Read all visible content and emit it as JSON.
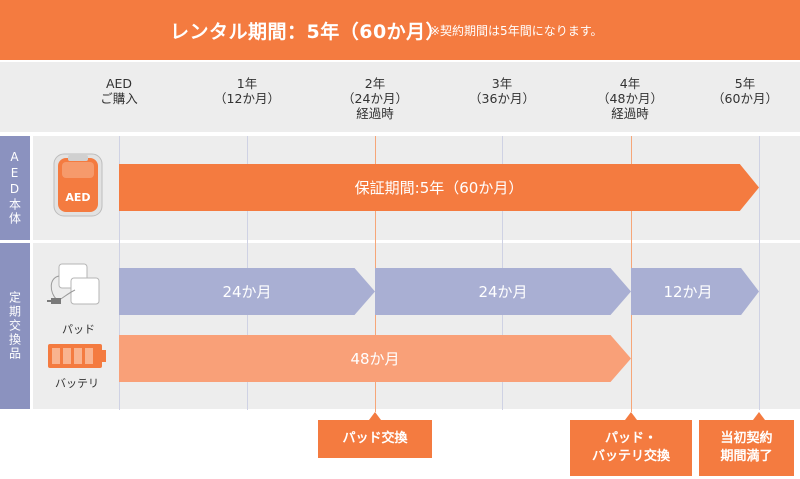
{
  "banner": {
    "title": "レンタル期間：5年（60か月）",
    "note": "※契約期間は5年間になります。"
  },
  "timeline_headers": [
    {
      "l1": "AED",
      "l2": "ご購入",
      "l3": ""
    },
    {
      "l1": "1年",
      "l2": "（12か月）",
      "l3": ""
    },
    {
      "l1": "2年",
      "l2": "（24か月）",
      "l3": "経過時"
    },
    {
      "l1": "3年",
      "l2": "（36か月）",
      "l3": ""
    },
    {
      "l1": "4年",
      "l2": "（48か月）",
      "l3": "経過時"
    },
    {
      "l1": "5年",
      "l2": "（60か月）",
      "l3": ""
    }
  ],
  "sections": {
    "aed": {
      "label": "AED本体",
      "icon_text": "AED"
    },
    "parts": {
      "label": "定期交換品",
      "pad_label": "パッド",
      "battery_label": "バッテリ"
    }
  },
  "bars": {
    "warranty": "保証期間:5年（60か月）",
    "pad1": "24か月",
    "pad2": "24か月",
    "pad3": "12か月",
    "battery": "48か月"
  },
  "events": {
    "pad_replace": "パッド交換",
    "pad_battery_l1": "パッド・",
    "pad_battery_l2": "バッテリ交換",
    "end_l1": "当初契約",
    "end_l2": "期間満了"
  },
  "colors": {
    "accent": "#f47b40",
    "bar_blue": "#a9afd3",
    "bar_peach": "#f9a078",
    "side_label": "#8b92bf",
    "panel_bg": "#ededed"
  }
}
